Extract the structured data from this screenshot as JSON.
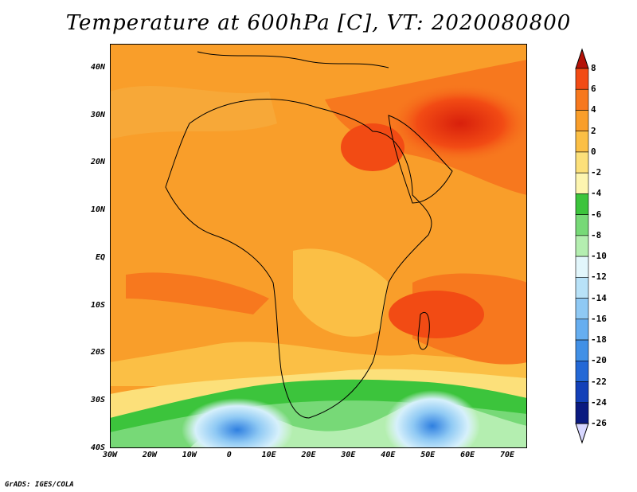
{
  "title": "Temperature at 600hPa [C], VT: 2020080800",
  "credit": "GrADS: IGES/COLA",
  "map": {
    "lon_range": [
      -30,
      75
    ],
    "lat_range": [
      -40,
      45
    ],
    "lat_ticks": [
      {
        "label": "40N",
        "lat": 40
      },
      {
        "label": "30N",
        "lat": 30
      },
      {
        "label": "20N",
        "lat": 20
      },
      {
        "label": "10N",
        "lat": 10
      },
      {
        "label": "EQ",
        "lat": 0
      },
      {
        "label": "10S",
        "lat": -10
      },
      {
        "label": "20S",
        "lat": -20
      },
      {
        "label": "30S",
        "lat": -30
      },
      {
        "label": "40S",
        "lat": -40
      }
    ],
    "lon_ticks": [
      {
        "label": "30W",
        "lon": -30
      },
      {
        "label": "20W",
        "lon": -20
      },
      {
        "label": "10W",
        "lon": -10
      },
      {
        "label": "0",
        "lon": 0
      },
      {
        "label": "10E",
        "lon": 10
      },
      {
        "label": "20E",
        "lon": 20
      },
      {
        "label": "30E",
        "lon": 30
      },
      {
        "label": "40E",
        "lon": 40
      },
      {
        "label": "50E",
        "lon": 50
      },
      {
        "label": "60E",
        "lon": 60
      },
      {
        "label": "70E",
        "lon": 70
      }
    ]
  },
  "colorbar": {
    "levels": [
      "8",
      "6",
      "4",
      "2",
      "0",
      "-2",
      "-4",
      "-6",
      "-8",
      "-10",
      "-12",
      "-14",
      "-16",
      "-18",
      "-20",
      "-22",
      "-24",
      "-26"
    ],
    "colors": [
      "#e41a0a",
      "#f24b14",
      "#f7781e",
      "#f99e2a",
      "#fbbf45",
      "#fce07a",
      "#fdf5b0",
      "#3cc43c",
      "#77d977",
      "#b4eeb0",
      "#e2f6fb",
      "#b8e2f8",
      "#8fc9f4",
      "#66aef0",
      "#4190e6",
      "#2368d6",
      "#1340b8",
      "#0a1a80"
    ],
    "top_cap_color": "#b41208",
    "bottom_cap_color": "#d7d7ff"
  }
}
